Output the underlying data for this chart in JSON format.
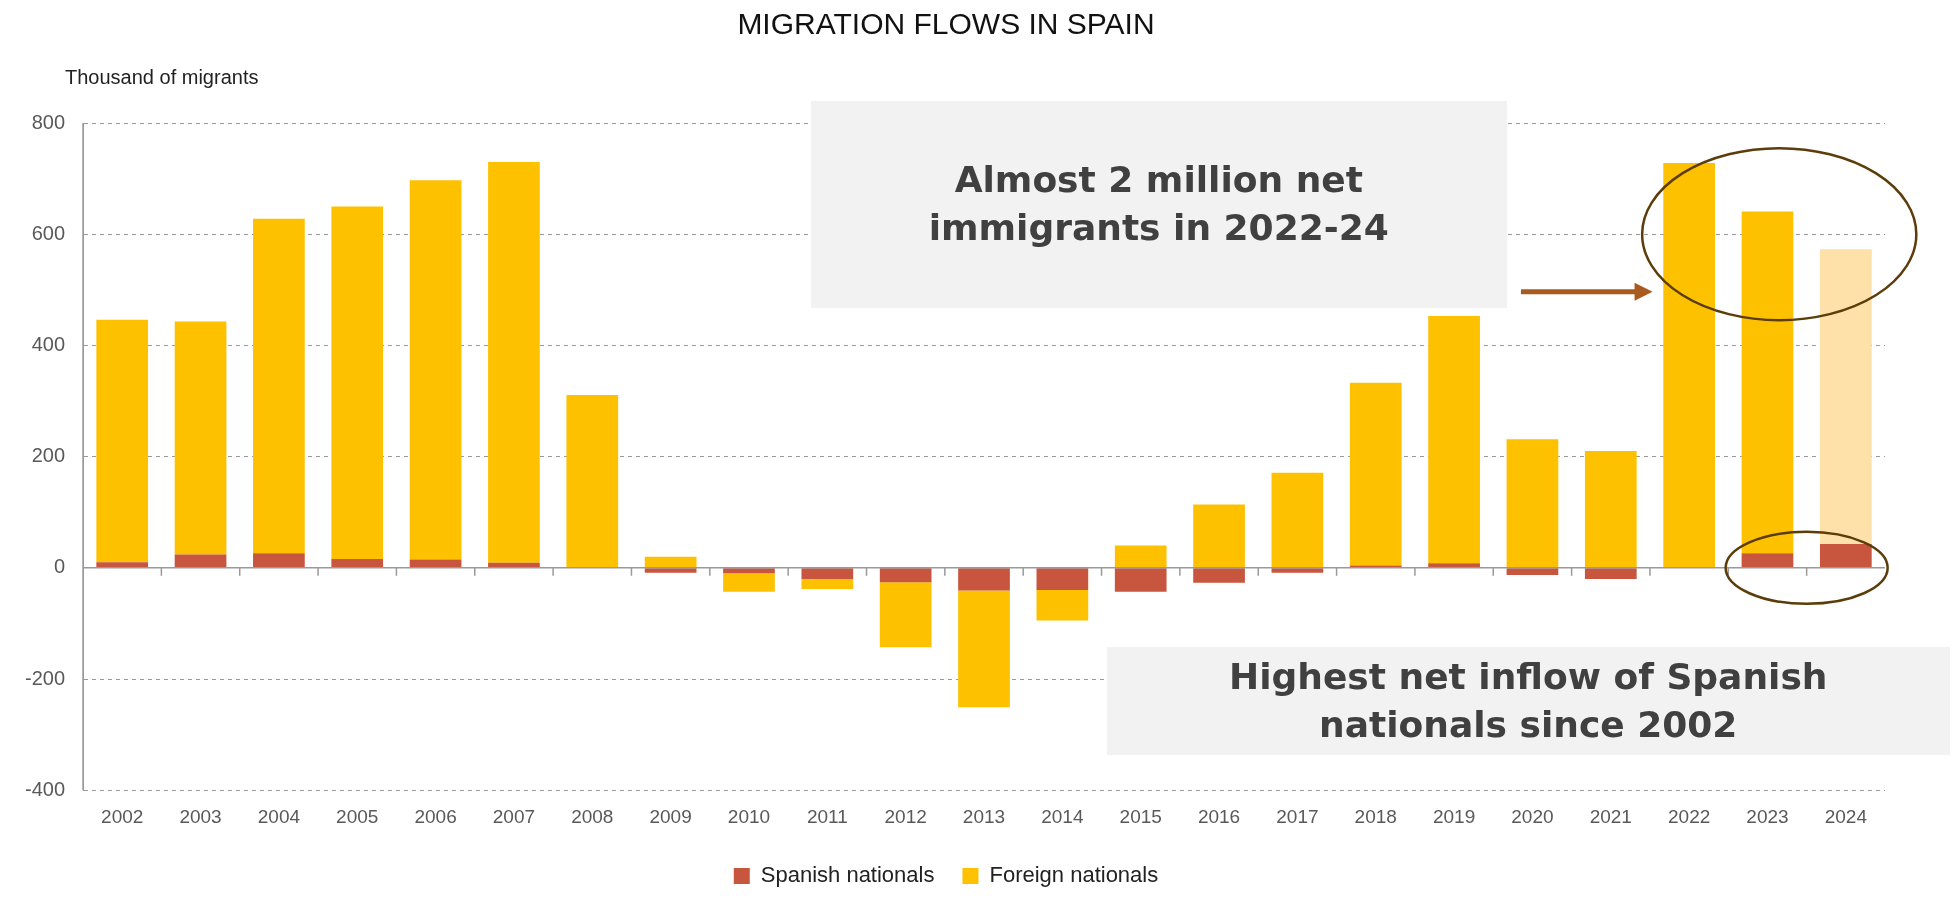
{
  "chart_data": {
    "type": "bar",
    "title": "MIGRATION FLOWS IN SPAIN",
    "ylabel": "Thousand of migrants",
    "categories": [
      "2002",
      "2003",
      "2004",
      "2005",
      "2006",
      "2007",
      "2008",
      "2009",
      "2010",
      "2011",
      "2012",
      "2013",
      "2014",
      "2015",
      "2016",
      "2017",
      "2018",
      "2019",
      "2020",
      "2021",
      "2022",
      "2023",
      "2024"
    ],
    "series": [
      {
        "name": "Spanish nationals",
        "color": "#c8553d",
        "values": [
          10,
          24,
          26,
          16,
          15,
          9,
          0,
          -9,
          -10,
          -20,
          -26,
          -41,
          -40,
          -43,
          -27,
          -9,
          4,
          8,
          -13,
          -20,
          null,
          26,
          43
        ]
      },
      {
        "name": "Foreign nationals",
        "color": "#fdc100",
        "colors": [
          "#fdc100",
          "#fdc100",
          "#fdc100",
          "#fdc100",
          "#fdc100",
          "#fdc100",
          "#fdc100",
          "#fdc100",
          "#fdc100",
          "#fdc100",
          "#fdc100",
          "#fdc100",
          "#fdc100",
          "#fdc100",
          "#fdc100",
          "#fdc100",
          "#fdc100",
          "#fdc100",
          "#fdc100",
          "#fdc100",
          "#fdc100",
          "#fdc100",
          "#fde1a8"
        ],
        "values": [
          436,
          419,
          602,
          634,
          682,
          721,
          311,
          20,
          -33,
          -18,
          -117,
          -210,
          -55,
          40,
          114,
          171,
          329,
          445,
          231,
          210,
          728,
          615,
          530
        ]
      }
    ],
    "stacked": true,
    "ylim": [
      -400,
      800
    ],
    "yticks": [
      -400,
      -200,
      0,
      200,
      400,
      600,
      800
    ],
    "grid": "y",
    "legend": "bottom",
    "annotations": [
      "Almost 2 million net immigrants in 2022-24",
      "Highest net inflow of Spanish nationals since 2002"
    ]
  }
}
